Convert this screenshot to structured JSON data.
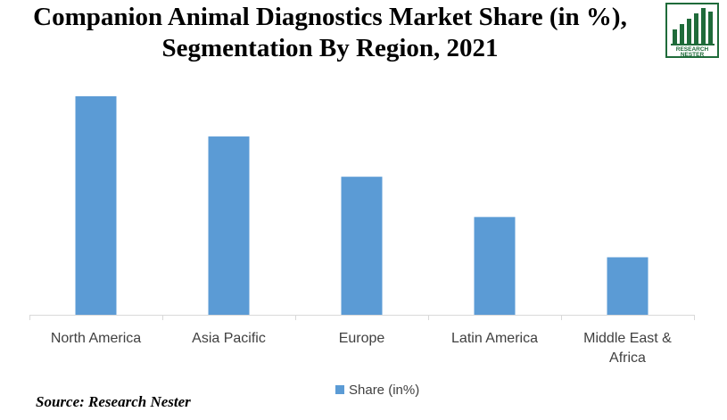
{
  "title": {
    "line1": "Companion Animal Diagnostics Market Share (in %),",
    "line2": "Segmentation By Region, 2021"
  },
  "logo": {
    "text_line1": "RESEARCH",
    "text_line2": "NESTER",
    "icon": "bar-chart-logo-icon",
    "color": "#1f6b3a"
  },
  "source": "Source: Research Nester",
  "colors": {
    "bar": "#5b9bd5",
    "axis": "#d9d9d9",
    "label": "#404040"
  },
  "chart_data": {
    "type": "bar",
    "categories": [
      "North America",
      "Asia Pacific",
      "Europe",
      "Latin America",
      "Middle East & Africa"
    ],
    "category_lines": [
      [
        "North America"
      ],
      [
        "Asia Pacific"
      ],
      [
        "Europe"
      ],
      [
        "Latin America"
      ],
      [
        "Middle East &",
        "Africa"
      ]
    ],
    "series": [
      {
        "name": "Share (in%)",
        "values": [
          38,
          31,
          24,
          17,
          10
        ]
      }
    ],
    "ylim": [
      0,
      40
    ],
    "xlabel": "",
    "ylabel": "",
    "grid": false,
    "legend": "bottom-center"
  }
}
